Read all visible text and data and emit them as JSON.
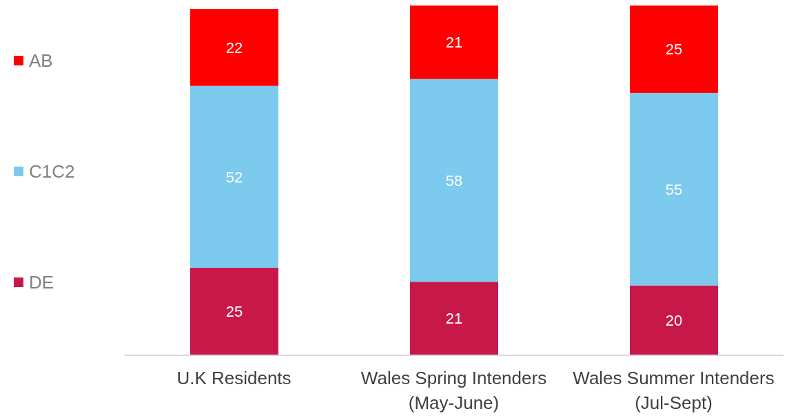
{
  "chart_data": {
    "type": "bar",
    "stacked": true,
    "categories": [
      "U.K Residents",
      "Wales Spring Intenders (May-June)",
      "Wales Summer Intenders (Jul-Sept)"
    ],
    "series": [
      {
        "name": "DE",
        "color": "#c8184a",
        "values": [
          25,
          21,
          20
        ]
      },
      {
        "name": "C1C2",
        "color": "#7ccaee",
        "values": [
          52,
          58,
          55
        ]
      },
      {
        "name": "AB",
        "color": "#ff0000",
        "values": [
          22,
          21,
          25
        ]
      }
    ],
    "data_labels": true,
    "legend": "left",
    "grid": false
  }
}
